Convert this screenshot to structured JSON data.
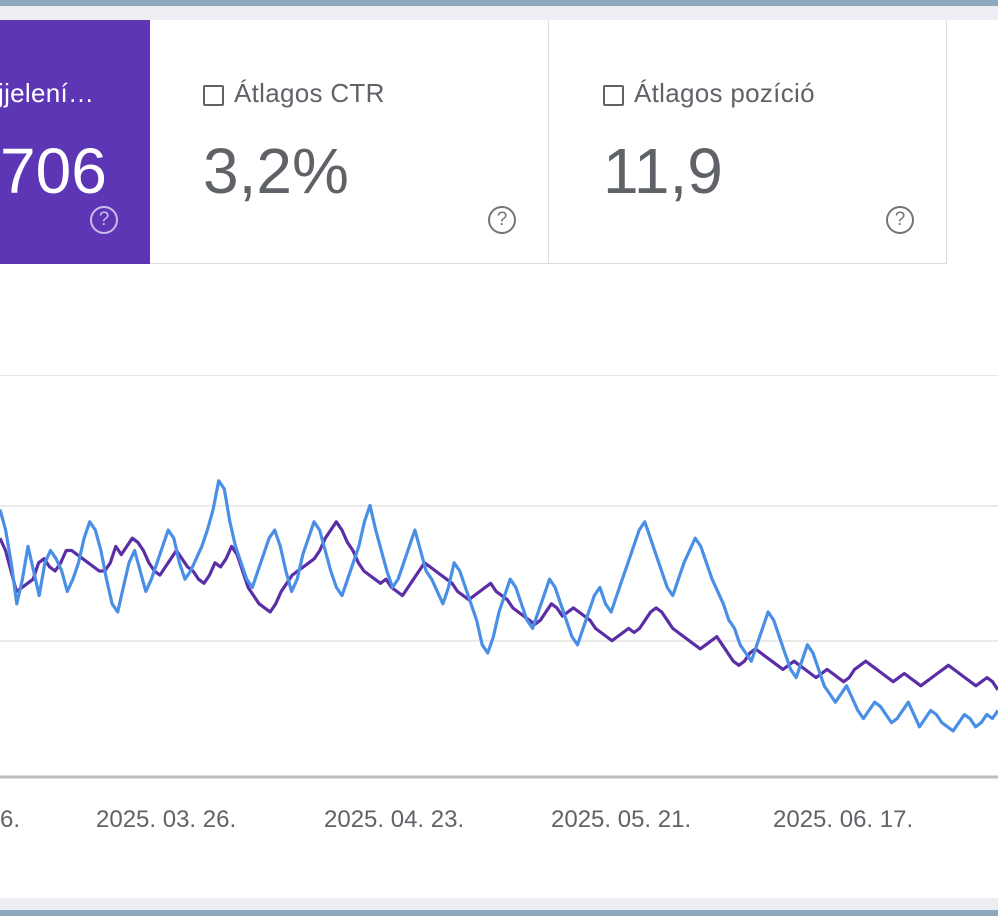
{
  "cards": [
    {
      "label": "jjelení…",
      "value": "706",
      "help": "?",
      "checked": true
    },
    {
      "label": "Átlagos CTR",
      "value": "3,2%",
      "help": "?",
      "checked": false
    },
    {
      "label": "Átlagos pozíció",
      "value": "11,9",
      "help": "?",
      "checked": false
    }
  ],
  "colors": {
    "active_card": "#5c36b4",
    "series_impressions": "#5b2ea6",
    "series_clicks": "#4a8fe6"
  },
  "chart_data": {
    "type": "line",
    "x_tick_labels": [
      "6.",
      "2025. 03. 26.",
      "2025. 04. 23.",
      "2025. 05. 21.",
      "2025. 06. 17."
    ],
    "x_range": [
      "2025. 02. 26.",
      "2025. 07. 04."
    ],
    "ylim": [
      0,
      100
    ],
    "grid": true,
    "series": [
      {
        "key": "impressions",
        "color": "#5b2ea6",
        "values": [
          58,
          55,
          50,
          45,
          46,
          47,
          48,
          52,
          53,
          51,
          50,
          52,
          55,
          55,
          54,
          53,
          52,
          51,
          50,
          50,
          52,
          56,
          54,
          56,
          58,
          57,
          55,
          52,
          50,
          49,
          51,
          53,
          55,
          53,
          51,
          50,
          48,
          47,
          49,
          52,
          51,
          53,
          56,
          54,
          50,
          46,
          44,
          42,
          41,
          40,
          42,
          45,
          47,
          49,
          50,
          51,
          52,
          53,
          55,
          58,
          60,
          62,
          60,
          57,
          55,
          52,
          50,
          49,
          48,
          47,
          48,
          46,
          45,
          44,
          46,
          48,
          50,
          52,
          51,
          50,
          49,
          48,
          47,
          45,
          44,
          43,
          44,
          45,
          46,
          47,
          45,
          44,
          43,
          41,
          40,
          39,
          38,
          37,
          38,
          40,
          42,
          41,
          39,
          40,
          41,
          40,
          39,
          38,
          36,
          35,
          34,
          33,
          34,
          35,
          36,
          35,
          36,
          38,
          40,
          41,
          40,
          38,
          36,
          35,
          34,
          33,
          32,
          31,
          32,
          33,
          34,
          32,
          30,
          28,
          27,
          28,
          30,
          31,
          30,
          29,
          28,
          27,
          26,
          27,
          28,
          27,
          26,
          25,
          24,
          25,
          26,
          25,
          24,
          23,
          24,
          26,
          27,
          28,
          27,
          26,
          25,
          24,
          23,
          24,
          25,
          24,
          23,
          22,
          23,
          24,
          25,
          26,
          27,
          26,
          25,
          24,
          23,
          22,
          23,
          24,
          23,
          21
        ]
      },
      {
        "key": "clicks",
        "color": "#4a8fe6",
        "values": [
          65,
          60,
          52,
          42,
          48,
          56,
          50,
          44,
          52,
          55,
          53,
          50,
          45,
          48,
          52,
          58,
          62,
          60,
          55,
          48,
          42,
          40,
          46,
          52,
          55,
          50,
          45,
          48,
          52,
          56,
          60,
          58,
          52,
          48,
          50,
          53,
          56,
          60,
          65,
          72,
          70,
          62,
          56,
          52,
          48,
          46,
          50,
          54,
          58,
          60,
          56,
          50,
          45,
          48,
          54,
          58,
          62,
          60,
          55,
          50,
          46,
          44,
          48,
          52,
          56,
          62,
          66,
          60,
          55,
          50,
          46,
          48,
          52,
          56,
          60,
          55,
          50,
          48,
          45,
          42,
          46,
          52,
          50,
          46,
          42,
          38,
          32,
          30,
          34,
          40,
          44,
          48,
          46,
          42,
          38,
          36,
          40,
          44,
          48,
          46,
          42,
          38,
          34,
          32,
          36,
          40,
          44,
          46,
          42,
          40,
          44,
          48,
          52,
          56,
          60,
          62,
          58,
          54,
          50,
          46,
          44,
          48,
          52,
          55,
          58,
          56,
          52,
          48,
          45,
          42,
          38,
          36,
          32,
          30,
          28,
          32,
          36,
          40,
          38,
          34,
          30,
          26,
          24,
          28,
          32,
          30,
          26,
          22,
          20,
          18,
          20,
          22,
          19,
          16,
          14,
          16,
          18,
          17,
          15,
          13,
          14,
          16,
          18,
          15,
          12,
          14,
          16,
          15,
          13,
          12,
          11,
          13,
          15,
          14,
          12,
          13,
          15,
          14,
          16
        ]
      }
    ]
  }
}
